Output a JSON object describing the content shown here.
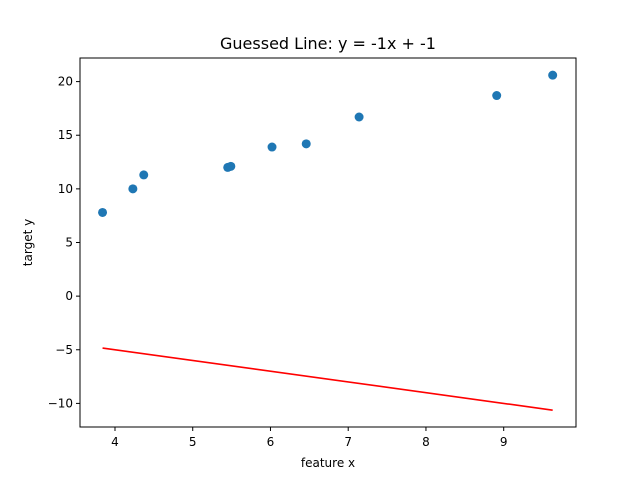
{
  "chart_data": {
    "type": "scatter",
    "title": "Guessed Line: y = -1x + -1",
    "xlabel": "feature x",
    "ylabel": "target y",
    "xlim": [
      3.55,
      9.93
    ],
    "ylim": [
      -12.2,
      22.2
    ],
    "xticks": [
      4,
      5,
      6,
      7,
      8,
      9
    ],
    "yticks": [
      -10,
      -5,
      0,
      5,
      10,
      15,
      20
    ],
    "grid": false,
    "legend": "none",
    "series": [
      {
        "type": "scatter",
        "color": "#1f77b4",
        "x": [
          3.84,
          4.23,
          4.37,
          5.45,
          5.49,
          6.02,
          6.46,
          7.14,
          8.91,
          9.63
        ],
        "y": [
          7.8,
          10.0,
          11.3,
          12.0,
          12.1,
          13.9,
          14.2,
          16.7,
          18.7,
          20.6
        ]
      },
      {
        "type": "line",
        "color": "#ff0000",
        "x": [
          3.84,
          9.63
        ],
        "y": [
          -4.84,
          -10.63
        ]
      }
    ]
  }
}
